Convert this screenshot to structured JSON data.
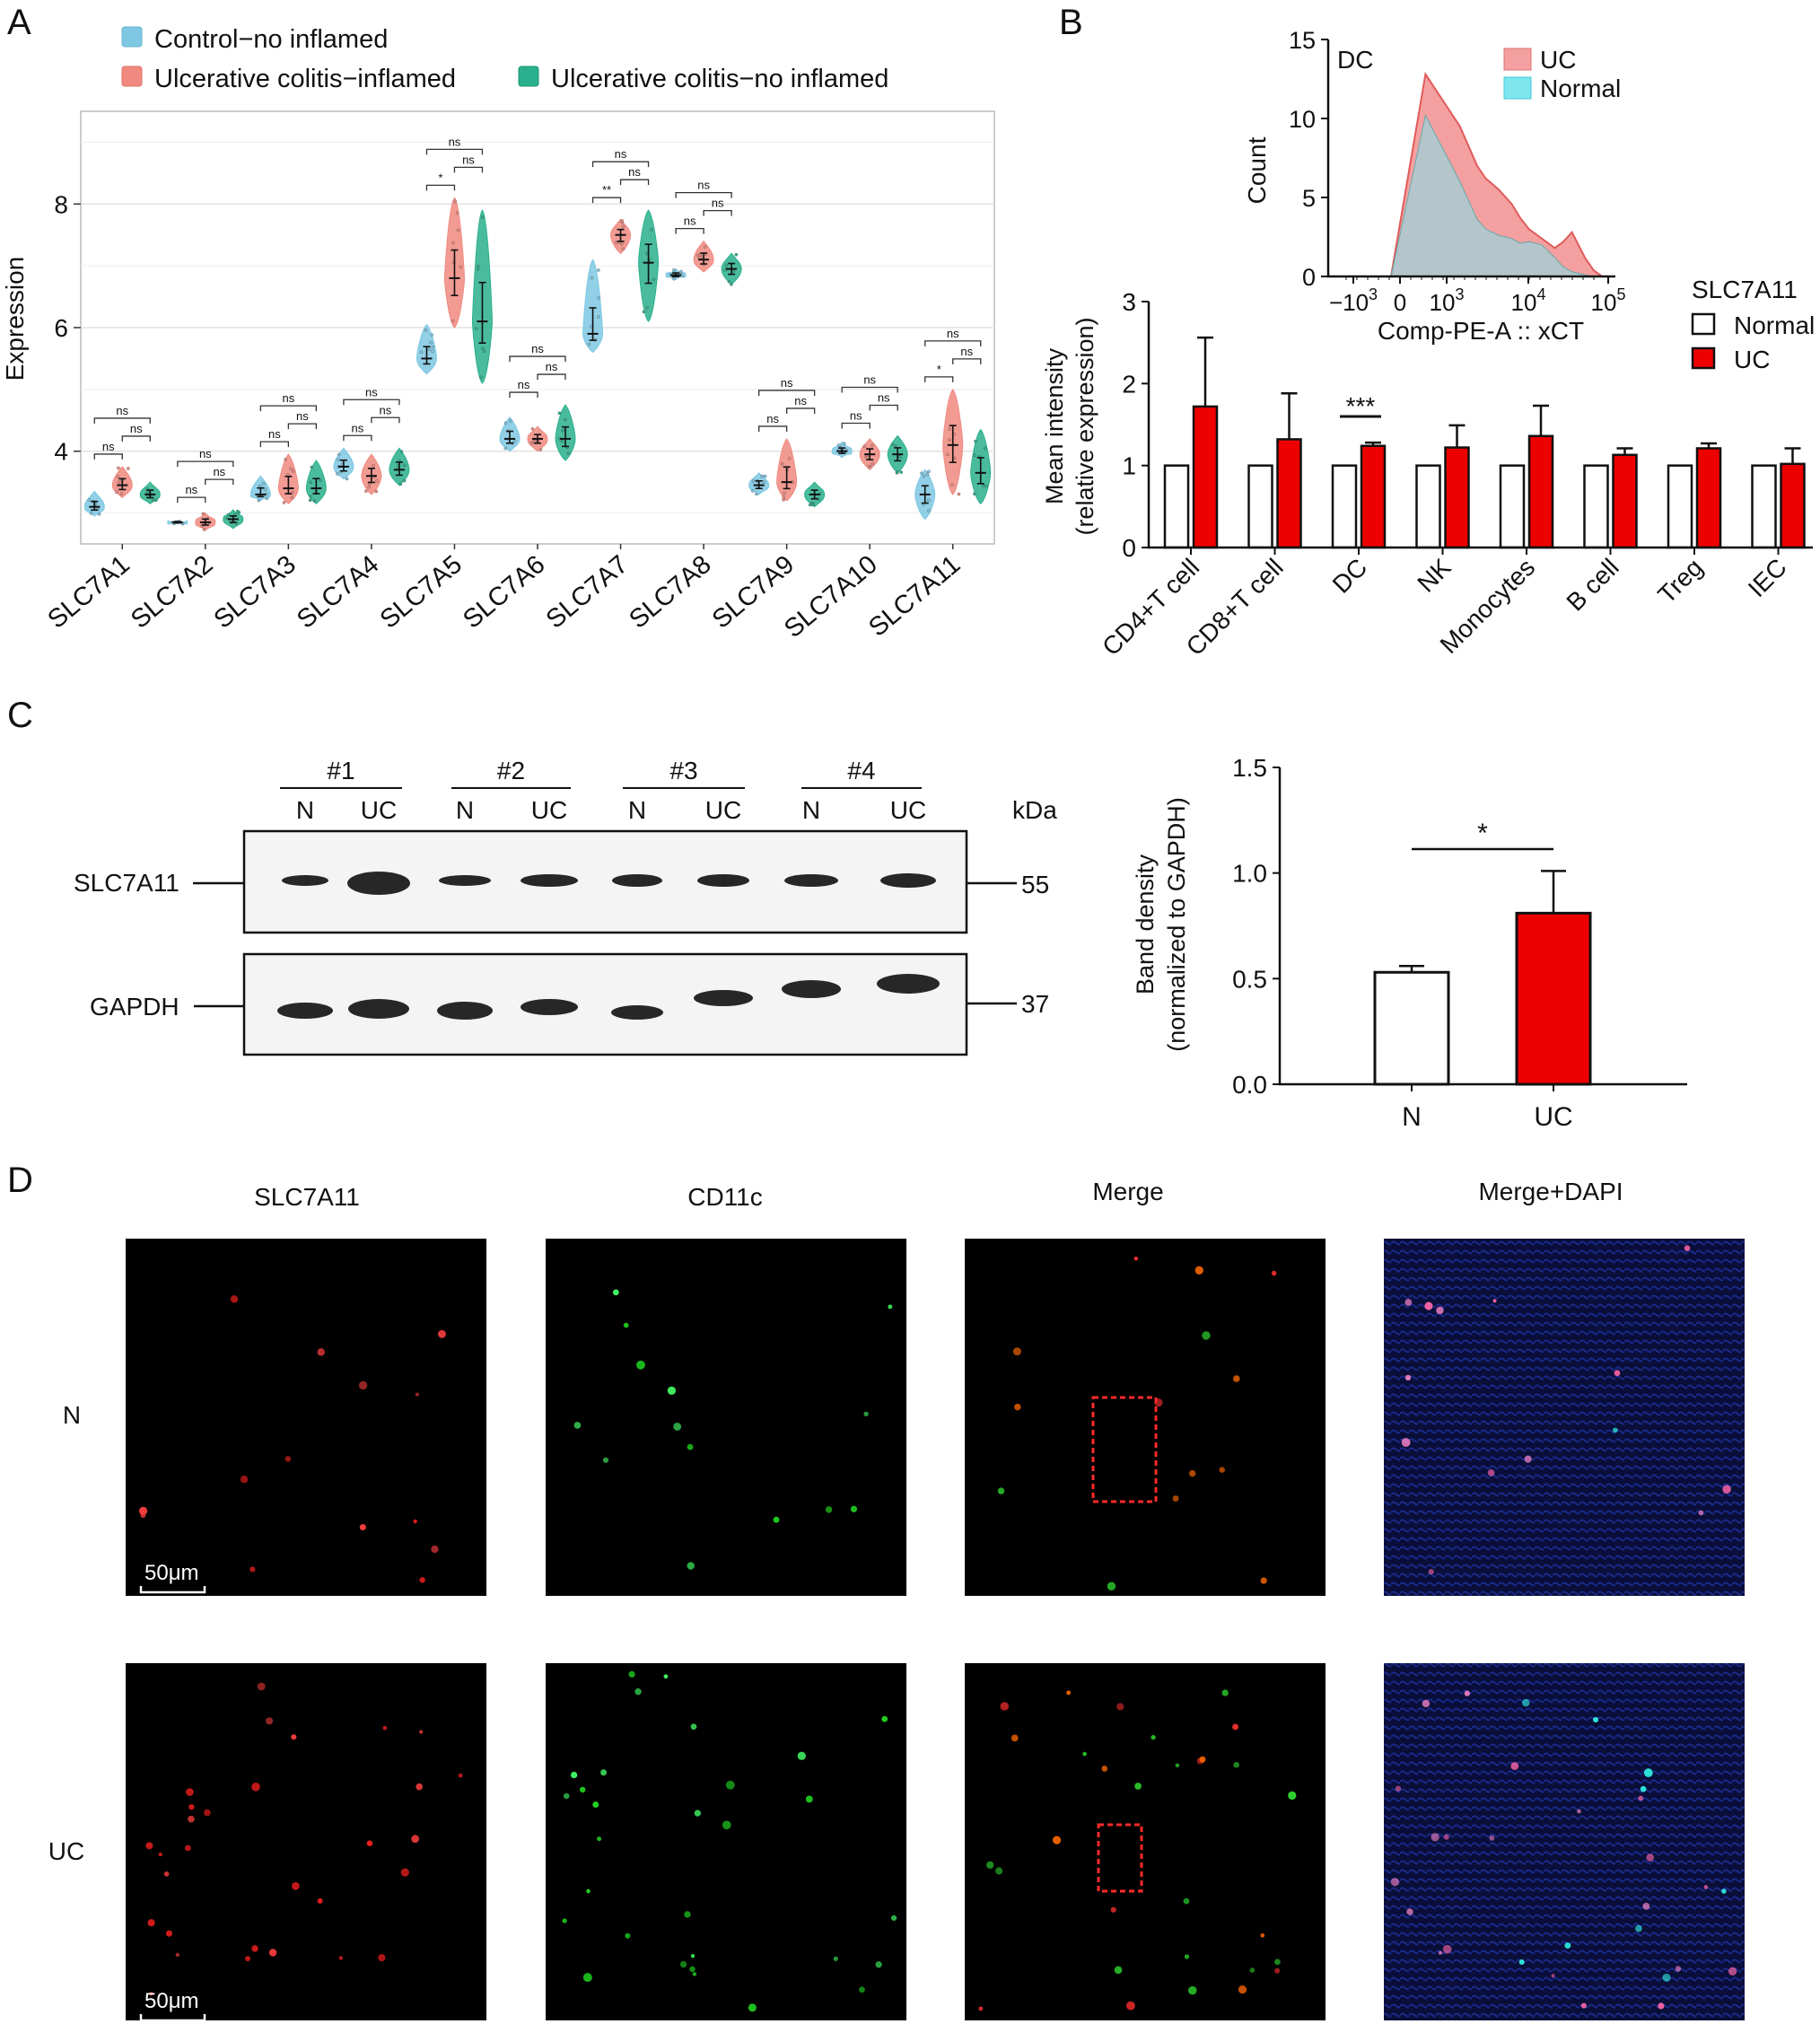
{
  "panel_labels": [
    "A",
    "B",
    "C",
    "D"
  ],
  "colors": {
    "control": "#7ec8e3",
    "uc_inflamed": "#f08a80",
    "uc_noninflamed": "#2ab08c",
    "red_bar": "#ee0000",
    "hist_uc": "#f4a0a0",
    "hist_normal": "#7fe6ee"
  },
  "chart_data": [
    {
      "panel": "A",
      "type": "violin",
      "ylabel": "Expression",
      "ylim": [
        2.5,
        9.5
      ],
      "yticks": [
        4,
        6,
        8
      ],
      "grid": true,
      "legend": {
        "position": "top",
        "entries": [
          "Control−no inflamed",
          "Ulcerative colitis−inflamed",
          "Ulcerative colitis−no inflamed"
        ]
      },
      "categories": [
        "SLC7A1",
        "SLC7A2",
        "SLC7A3",
        "SLC7A4",
        "SLC7A5",
        "SLC7A6",
        "SLC7A7",
        "SLC7A8",
        "SLC7A9",
        "SLC7A10",
        "SLC7A11"
      ],
      "series": [
        {
          "name": "Control−no inflamed",
          "median": [
            3.1,
            2.85,
            3.3,
            3.75,
            5.5,
            4.2,
            5.9,
            6.85,
            3.45,
            4.0,
            3.3
          ],
          "min": [
            2.95,
            2.82,
            3.2,
            3.55,
            5.25,
            4.0,
            5.6,
            6.78,
            3.3,
            3.9,
            2.9
          ],
          "max": [
            3.35,
            2.88,
            3.6,
            4.05,
            6.05,
            4.55,
            7.1,
            6.95,
            3.65,
            4.15,
            3.7
          ]
        },
        {
          "name": "Ulcerative colitis−inflamed",
          "median": [
            3.45,
            2.85,
            3.4,
            3.6,
            6.8,
            4.2,
            7.5,
            7.1,
            3.5,
            3.95,
            4.1
          ],
          "min": [
            3.25,
            2.72,
            3.15,
            3.3,
            6.0,
            4.0,
            7.2,
            6.9,
            3.2,
            3.7,
            3.3
          ],
          "max": [
            3.75,
            3.0,
            3.95,
            3.95,
            8.1,
            4.4,
            7.75,
            7.4,
            4.2,
            4.2,
            5.0
          ]
        },
        {
          "name": "Ulcerative colitis−no inflamed",
          "median": [
            3.3,
            2.9,
            3.4,
            3.7,
            6.1,
            4.2,
            7.05,
            6.95,
            3.3,
            3.95,
            3.65
          ],
          "min": [
            3.15,
            2.75,
            3.15,
            3.45,
            5.1,
            3.85,
            6.1,
            6.7,
            3.1,
            3.65,
            3.15
          ],
          "max": [
            3.5,
            3.05,
            3.85,
            4.05,
            7.9,
            4.75,
            7.9,
            7.2,
            3.5,
            4.25,
            4.35
          ]
        }
      ],
      "significance": [
        [
          "ns",
          "ns",
          "ns"
        ],
        [
          "ns",
          "ns",
          "ns"
        ],
        [
          "ns",
          "ns",
          "ns"
        ],
        [
          "ns",
          "ns",
          "ns"
        ],
        [
          "*",
          "ns",
          "ns"
        ],
        [
          "ns",
          "ns",
          "ns"
        ],
        [
          "**",
          "ns",
          "ns"
        ],
        [
          "ns",
          "ns",
          "ns"
        ],
        [
          "ns",
          "ns",
          "ns"
        ],
        [
          "ns",
          "ns",
          "ns"
        ],
        [
          "*",
          "ns",
          "ns"
        ]
      ]
    },
    {
      "panel": "B-inset",
      "type": "area",
      "title": "DC",
      "ylabel": "Count",
      "xlabel": "Comp-PE-A :: xCT",
      "ylim": [
        0,
        15
      ],
      "yticks": [
        0,
        5,
        10,
        15
      ],
      "xtick_labels": [
        [
          "−10",
          "3"
        ],
        [
          "0",
          ""
        ],
        [
          "10",
          "3"
        ],
        [
          "10",
          "4"
        ],
        [
          "10",
          "5"
        ]
      ],
      "legend": {
        "position": "top-right",
        "entries": [
          "UC",
          "Normal"
        ]
      },
      "x_log": [
        0.0,
        0.8,
        1.6,
        2.0,
        2.2,
        2.5,
        2.8,
        3.0,
        3.2,
        3.5,
        3.8,
        4.0,
        4.2,
        4.5,
        4.7,
        4.9
      ],
      "series": [
        {
          "name": "UC",
          "values": [
            0,
            12.8,
            9.5,
            7.0,
            6.2,
            5.5,
            4.6,
            3.7,
            3.0,
            2.4,
            1.8,
            2.2,
            2.8,
            1.2,
            0.4,
            0
          ]
        },
        {
          "name": "Normal",
          "values": [
            0,
            10.2,
            6.0,
            3.6,
            3.0,
            2.6,
            2.4,
            2.1,
            2.2,
            2.0,
            1.2,
            0.6,
            0.3,
            0.1,
            0,
            0
          ]
        }
      ]
    },
    {
      "panel": "B",
      "type": "bar",
      "ylabel": "Mean intensity",
      "ylabel2": "(relative expression)",
      "ylim": [
        0,
        3
      ],
      "yticks": [
        0,
        1,
        2,
        3
      ],
      "legend": {
        "position": "right",
        "title": "SLC7A11",
        "entries": [
          "Normal",
          "UC"
        ]
      },
      "categories": [
        "CD4+T cell",
        "CD8+T cell",
        "DC",
        "NK",
        "Monocytes",
        "B cell",
        "Treg",
        "IEC"
      ],
      "series": [
        {
          "name": "Normal",
          "values": [
            1,
            1,
            1,
            1,
            1,
            1,
            1,
            1
          ],
          "errors": [
            0,
            0,
            0,
            0,
            0,
            0,
            0,
            0
          ]
        },
        {
          "name": "UC",
          "values": [
            1.72,
            1.32,
            1.24,
            1.22,
            1.36,
            1.13,
            1.21,
            1.02
          ],
          "errors": [
            0.84,
            0.56,
            0.04,
            0.27,
            0.37,
            0.08,
            0.06,
            0.19
          ]
        }
      ],
      "annotations": [
        {
          "category": "DC",
          "text": "***"
        }
      ]
    },
    {
      "panel": "C",
      "type": "bar",
      "ylabel": "Band density",
      "ylabel2": "(normalized to GAPDH)",
      "ylim": [
        0,
        1.5
      ],
      "yticks": [
        0.0,
        0.5,
        1.0,
        1.5
      ],
      "categories": [
        "N",
        "UC"
      ],
      "values": [
        0.53,
        0.81
      ],
      "errors": [
        0.03,
        0.2
      ],
      "annotations": [
        {
          "text": "*"
        }
      ]
    }
  ],
  "blot": {
    "groups": [
      "#1",
      "#2",
      "#3",
      "#4"
    ],
    "lanes": [
      "N",
      "UC",
      "N",
      "UC",
      "N",
      "UC",
      "N",
      "UC"
    ],
    "unit": "kDa",
    "rows": [
      {
        "protein": "SLC7A11",
        "mw": "55"
      },
      {
        "protein": "GAPDH",
        "mw": "37"
      }
    ]
  },
  "microscopy": {
    "columns": [
      "SLC7A11",
      "CD11c",
      "Merge",
      "Merge+DAPI"
    ],
    "rows": [
      "N",
      "UC"
    ],
    "scale_bar": "50μm"
  }
}
